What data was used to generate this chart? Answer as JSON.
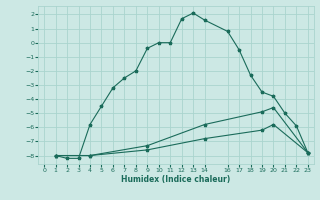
{
  "xlabel": "Humidex (Indice chaleur)",
  "bg_color": "#cce8e4",
  "grid_color": "#aad4ce",
  "line_color": "#1a6b5a",
  "xlim": [
    -0.5,
    23.5
  ],
  "ylim": [
    -8.6,
    2.6
  ],
  "yticks": [
    2,
    1,
    0,
    -1,
    -2,
    -3,
    -4,
    -5,
    -6,
    -7,
    -8
  ],
  "xticks": [
    0,
    1,
    2,
    3,
    4,
    5,
    6,
    7,
    8,
    9,
    10,
    11,
    12,
    13,
    14,
    16,
    17,
    18,
    19,
    20,
    21,
    22,
    23
  ],
  "line1_x": [
    1,
    2,
    3,
    4,
    5,
    6,
    7,
    8,
    9,
    10,
    11,
    12,
    13,
    14,
    16,
    17,
    18,
    19,
    20,
    21,
    22,
    23
  ],
  "line1_y": [
    -8,
    -8.2,
    -8.2,
    -5.8,
    -4.5,
    -3.2,
    -2.5,
    -2.0,
    -0.4,
    0.0,
    0.0,
    1.7,
    2.1,
    1.6,
    0.8,
    -0.5,
    -2.3,
    -3.5,
    -3.8,
    -5.0,
    -5.9,
    -7.8
  ],
  "line2_x": [
    1,
    4,
    9,
    14,
    19,
    20,
    23
  ],
  "line2_y": [
    -8,
    -8.0,
    -7.3,
    -5.8,
    -4.9,
    -4.6,
    -7.8
  ],
  "line3_x": [
    1,
    4,
    9,
    14,
    19,
    20,
    23
  ],
  "line3_y": [
    -8,
    -8.0,
    -7.6,
    -6.8,
    -6.2,
    -5.8,
    -7.8
  ]
}
